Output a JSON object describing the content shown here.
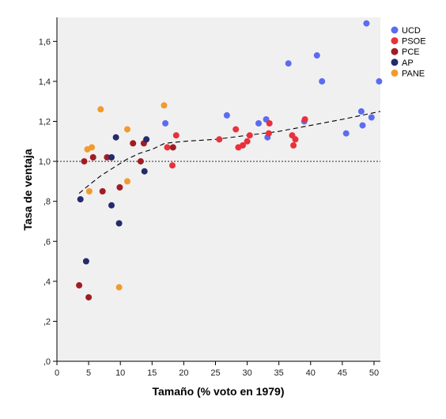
{
  "chart_data": {
    "type": "scatter",
    "xlabel": "Tamaño (% voto en 1979)",
    "ylabel": "Tasa de ventaja",
    "xlim": [
      0,
      51
    ],
    "ylim": [
      0,
      1.72
    ],
    "xticks": [
      0,
      5,
      10,
      15,
      20,
      25,
      30,
      35,
      40,
      45,
      50
    ],
    "xtick_labels": [
      "0",
      "5",
      "10",
      "15",
      "20",
      "25",
      "30",
      "35",
      "40",
      "45",
      "50"
    ],
    "yticks": [
      0,
      0.2,
      0.4,
      0.6,
      0.8,
      1.0,
      1.2,
      1.4,
      1.6
    ],
    "ytick_labels": [
      ",0",
      ",2",
      ",4",
      ",6",
      ",8",
      "1,0",
      "1,2",
      "1,4",
      "1,6"
    ],
    "grid": false,
    "background_color": "#f0f0f0",
    "legend_position": "right",
    "reference_line": {
      "y": 1.0,
      "style": "dotted",
      "color": "#555555"
    },
    "trend_line": {
      "style": "dashed",
      "color": "#000000",
      "x": [
        3.5,
        5,
        7,
        9,
        11,
        13,
        15,
        17,
        20,
        25,
        30,
        35,
        40,
        45,
        51
      ],
      "y": [
        0.84,
        0.88,
        0.93,
        0.97,
        1.01,
        1.04,
        1.06,
        1.09,
        1.1,
        1.11,
        1.13,
        1.15,
        1.18,
        1.21,
        1.25
      ]
    },
    "series": [
      {
        "name": "UCD",
        "color": "#5b6cf0",
        "points": [
          {
            "x": 17.1,
            "y": 1.19
          },
          {
            "x": 26.8,
            "y": 1.23
          },
          {
            "x": 31.8,
            "y": 1.19
          },
          {
            "x": 33.0,
            "y": 1.21
          },
          {
            "x": 33.2,
            "y": 1.12
          },
          {
            "x": 36.5,
            "y": 1.49
          },
          {
            "x": 39.0,
            "y": 1.2
          },
          {
            "x": 41.0,
            "y": 1.53
          },
          {
            "x": 41.8,
            "y": 1.4
          },
          {
            "x": 45.6,
            "y": 1.14
          },
          {
            "x": 48.0,
            "y": 1.25
          },
          {
            "x": 48.2,
            "y": 1.18
          },
          {
            "x": 48.8,
            "y": 1.69
          },
          {
            "x": 49.6,
            "y": 1.22
          },
          {
            "x": 50.8,
            "y": 1.4
          }
        ]
      },
      {
        "name": "PSOE",
        "color": "#e8313b",
        "points": [
          {
            "x": 17.4,
            "y": 1.07
          },
          {
            "x": 18.2,
            "y": 0.98
          },
          {
            "x": 18.8,
            "y": 1.13
          },
          {
            "x": 25.6,
            "y": 1.11
          },
          {
            "x": 28.2,
            "y": 1.16
          },
          {
            "x": 28.6,
            "y": 1.07
          },
          {
            "x": 29.3,
            "y": 1.08
          },
          {
            "x": 30.0,
            "y": 1.1
          },
          {
            "x": 30.4,
            "y": 1.13
          },
          {
            "x": 33.5,
            "y": 1.19
          },
          {
            "x": 33.4,
            "y": 1.14
          },
          {
            "x": 37.1,
            "y": 1.13
          },
          {
            "x": 37.3,
            "y": 1.08
          },
          {
            "x": 37.6,
            "y": 1.11
          },
          {
            "x": 39.1,
            "y": 1.21
          }
        ]
      },
      {
        "name": "PCE",
        "color": "#a01c24",
        "points": [
          {
            "x": 3.5,
            "y": 0.38
          },
          {
            "x": 4.3,
            "y": 1.0
          },
          {
            "x": 5.0,
            "y": 0.32
          },
          {
            "x": 5.7,
            "y": 1.02
          },
          {
            "x": 7.2,
            "y": 0.85
          },
          {
            "x": 7.9,
            "y": 1.02
          },
          {
            "x": 9.9,
            "y": 0.87
          },
          {
            "x": 12.0,
            "y": 1.09
          },
          {
            "x": 13.2,
            "y": 1.0
          },
          {
            "x": 13.7,
            "y": 1.09
          },
          {
            "x": 18.3,
            "y": 1.07
          }
        ]
      },
      {
        "name": "AP",
        "color": "#242a6b",
        "points": [
          {
            "x": 3.7,
            "y": 0.81
          },
          {
            "x": 4.6,
            "y": 0.5
          },
          {
            "x": 8.6,
            "y": 1.02
          },
          {
            "x": 8.6,
            "y": 0.78
          },
          {
            "x": 9.3,
            "y": 1.12
          },
          {
            "x": 9.8,
            "y": 0.69
          },
          {
            "x": 13.8,
            "y": 0.95
          },
          {
            "x": 14.1,
            "y": 1.11
          }
        ]
      },
      {
        "name": "PANE",
        "color": "#f29a2e",
        "points": [
          {
            "x": 4.8,
            "y": 1.06
          },
          {
            "x": 5.1,
            "y": 0.85
          },
          {
            "x": 5.5,
            "y": 1.07
          },
          {
            "x": 6.9,
            "y": 1.26
          },
          {
            "x": 9.8,
            "y": 0.37
          },
          {
            "x": 11.1,
            "y": 1.16
          },
          {
            "x": 11.1,
            "y": 0.9
          },
          {
            "x": 16.9,
            "y": 1.28
          }
        ]
      }
    ]
  }
}
